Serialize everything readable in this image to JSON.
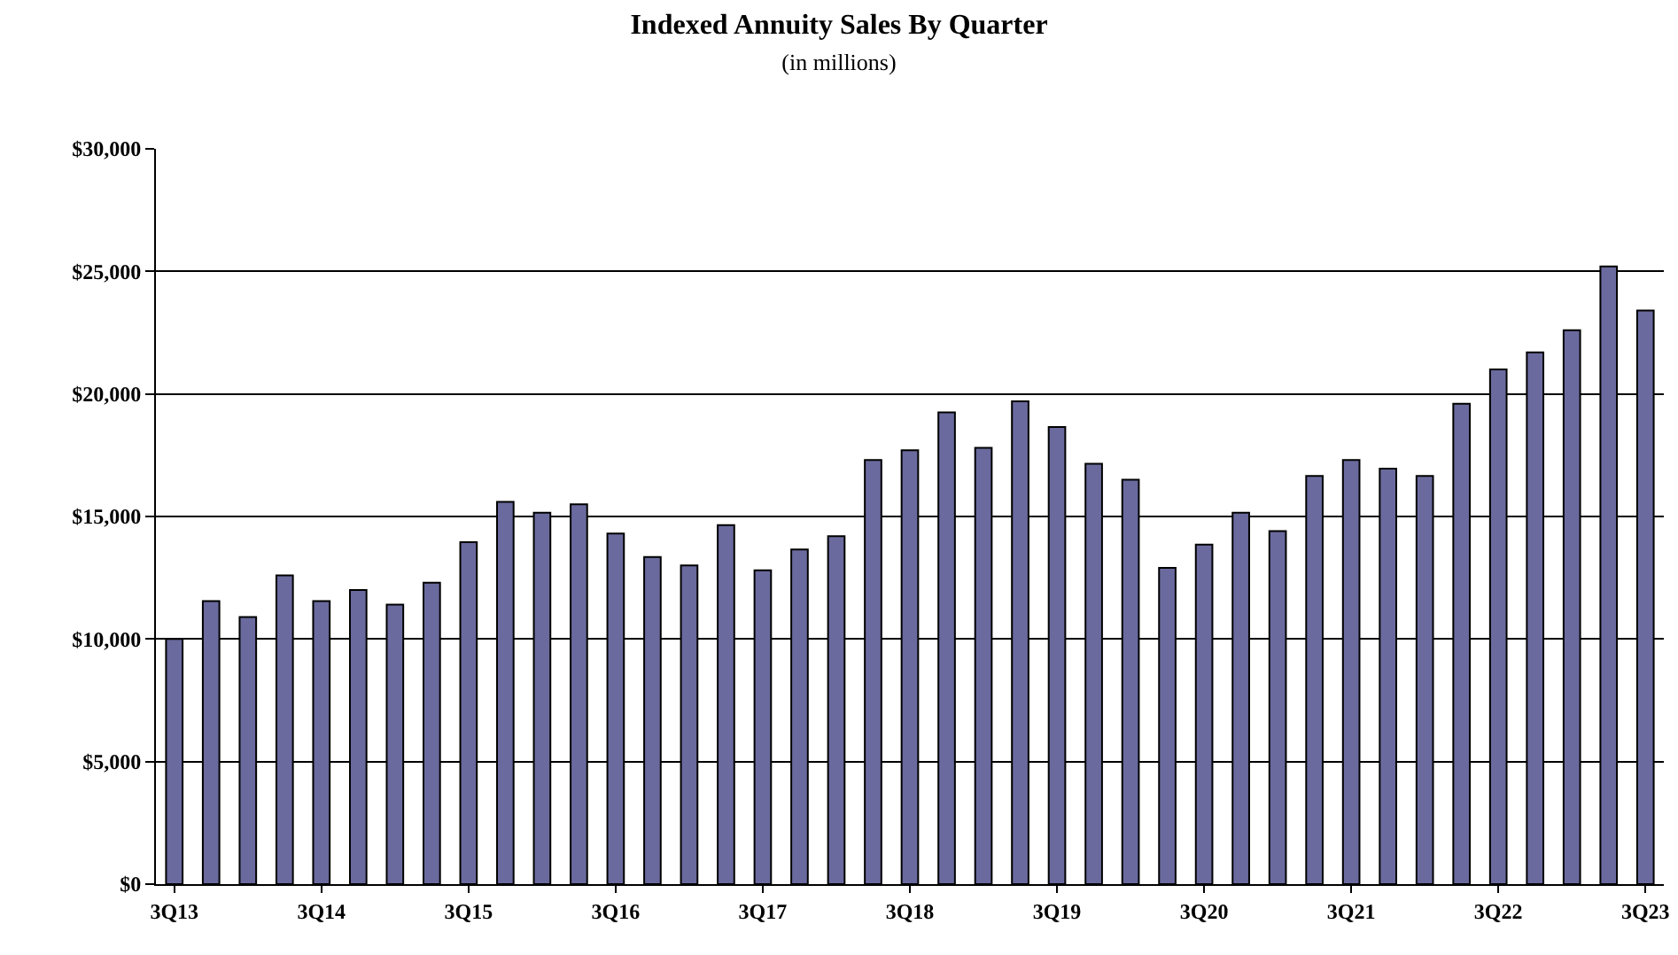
{
  "chart_data": {
    "type": "bar",
    "title": "Indexed Annuity Sales By Quarter",
    "subtitle": "(in millions)",
    "categories": [
      "3Q13",
      null,
      null,
      null,
      "3Q14",
      null,
      null,
      null,
      "3Q15",
      null,
      null,
      null,
      "3Q16",
      null,
      null,
      null,
      "3Q17",
      null,
      null,
      null,
      "3Q18",
      null,
      null,
      null,
      "3Q19",
      null,
      null,
      null,
      "3Q20",
      null,
      null,
      null,
      "3Q21",
      null,
      null,
      null,
      "3Q22",
      null,
      null,
      null,
      "3Q23"
    ],
    "values": [
      10000,
      11550,
      10900,
      12600,
      11550,
      12000,
      11400,
      12300,
      13950,
      15600,
      15150,
      15500,
      14300,
      13350,
      13000,
      14650,
      12800,
      13650,
      14200,
      17300,
      17700,
      19250,
      17800,
      19700,
      18650,
      17150,
      16500,
      12900,
      13850,
      15150,
      14400,
      16650,
      17300,
      16950,
      16650,
      19600,
      21000,
      21700,
      22600,
      25200,
      23400
    ],
    "color": "#6a6a9e",
    "ylim": [
      0,
      30000
    ],
    "yticks": [
      {
        "value": 0,
        "label": "$0"
      },
      {
        "value": 5000,
        "label": "$5,000"
      },
      {
        "value": 10000,
        "label": "$10,000"
      },
      {
        "value": 15000,
        "label": "$15,000"
      },
      {
        "value": 20000,
        "label": "$20,000"
      },
      {
        "value": 25000,
        "label": "$25,000"
      },
      {
        "value": 30000,
        "label": "$30,000"
      }
    ],
    "grid": "y"
  }
}
